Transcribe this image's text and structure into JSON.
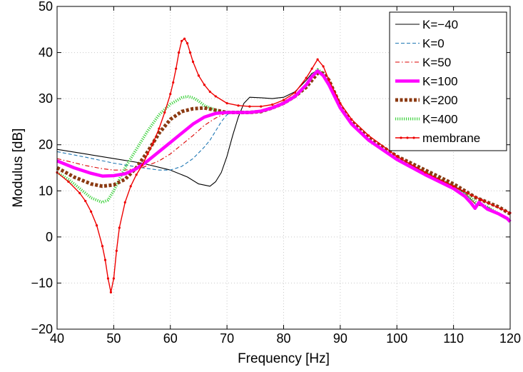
{
  "chart_data": {
    "type": "line",
    "title": "",
    "xlabel": "Frequency [Hz]",
    "ylabel": "Modulus [dB]",
    "xlim": [
      40,
      120
    ],
    "ylim": [
      -20,
      50
    ],
    "xticks": [
      40,
      50,
      60,
      70,
      80,
      90,
      100,
      110,
      120
    ],
    "yticks": [
      -20,
      -10,
      0,
      10,
      20,
      30,
      40,
      50
    ],
    "xtick_labels": [
      "40",
      "50",
      "60",
      "70",
      "80",
      "90",
      "100",
      "110",
      "120"
    ],
    "ytick_labels": [
      "−20",
      "−10",
      "0",
      "10",
      "20",
      "30",
      "40",
      "50"
    ],
    "grid": true,
    "legend_position": "top-right",
    "series": [
      {
        "name": "K=−40",
        "color": "#000000",
        "style": "solid",
        "x": [
          40,
          45,
          50,
          55,
          60,
          63,
          65,
          67,
          68,
          69,
          70,
          71,
          72,
          73,
          74,
          76,
          78,
          80,
          82,
          84,
          85,
          86,
          87,
          88,
          90,
          92,
          95,
          100,
          105,
          110,
          112,
          114,
          116,
          118,
          120
        ],
        "y": [
          19,
          18,
          17,
          16,
          14.5,
          13,
          11.5,
          11,
          12,
          14,
          17.5,
          22,
          26,
          29,
          30.3,
          30.2,
          30,
          30.3,
          31.5,
          34,
          35.5,
          36,
          35.2,
          33,
          28,
          24.5,
          21,
          17,
          14,
          11,
          9.5,
          7,
          6.5,
          5,
          3.5
        ]
      },
      {
        "name": "K=0",
        "color": "#1f77b4",
        "style": "dash",
        "x": [
          40,
          45,
          50,
          55,
          58,
          60,
          62,
          64,
          66,
          67,
          68,
          69,
          70,
          71,
          72,
          74,
          76,
          78,
          80,
          82,
          84,
          85,
          86,
          87,
          88,
          90,
          92,
          95,
          100,
          105,
          110,
          112,
          114,
          116,
          118,
          120
        ],
        "y": [
          18.5,
          17.3,
          16,
          15,
          14.5,
          14.5,
          15.3,
          17,
          19.5,
          21,
          23,
          25,
          26.5,
          27,
          27,
          27,
          27.5,
          28,
          29,
          30.5,
          33,
          35,
          36,
          35,
          33,
          28,
          24.5,
          21,
          17,
          14,
          11,
          9.5,
          7,
          6.5,
          5,
          3.5
        ]
      },
      {
        "name": "K=50",
        "color": "#dd0000",
        "style": "dashdot",
        "x": [
          40,
          45,
          48,
          50,
          52,
          55,
          58,
          60,
          62,
          64,
          66,
          68,
          70,
          72,
          74,
          76,
          78,
          80,
          82,
          84,
          85,
          86,
          87,
          88,
          90,
          92,
          95,
          100,
          105,
          110,
          112,
          114,
          116,
          118,
          120
        ],
        "y": [
          17,
          15.5,
          14.8,
          14.5,
          14.5,
          15,
          16.5,
          18,
          20,
          22,
          24.2,
          25.8,
          27,
          27,
          27,
          27.3,
          28,
          29,
          30.5,
          33,
          35,
          36,
          35,
          33,
          28,
          24.5,
          21,
          17,
          14,
          11,
          9.5,
          7,
          6.5,
          5,
          3.5
        ]
      },
      {
        "name": "K=100",
        "color": "#ff00ff",
        "style": "thick",
        "x": [
          40,
          43,
          46,
          48,
          50,
          52,
          54,
          56,
          58,
          60,
          62,
          64,
          66,
          68,
          70,
          72,
          74,
          76,
          78,
          80,
          82,
          84,
          85,
          86,
          87,
          88,
          90,
          92,
          95,
          100,
          105,
          110,
          112,
          113,
          113.8,
          114.5,
          115.5,
          116,
          118,
          119.5,
          120
        ],
        "y": [
          16.5,
          15,
          13.8,
          13.2,
          13.3,
          13.7,
          14.8,
          16.5,
          18.5,
          20.5,
          22.5,
          24.5,
          26,
          26.8,
          27,
          27,
          27,
          27.3,
          28,
          29,
          30.5,
          33,
          34.8,
          36,
          35,
          33,
          28,
          24.5,
          21,
          16.8,
          13.5,
          10.5,
          8.8,
          7.5,
          6.2,
          7.5,
          6.5,
          6,
          5,
          4,
          3.3
        ]
      },
      {
        "name": "K=200",
        "color": "#8b3a12",
        "style": "thickdot",
        "x": [
          40,
          43,
          46,
          48,
          50,
          52,
          54,
          56,
          58,
          60,
          62,
          64,
          66,
          68,
          70,
          72,
          74,
          76,
          78,
          80,
          82,
          84,
          85,
          86,
          87,
          88,
          90,
          92,
          95,
          100,
          105,
          110,
          112,
          114,
          116,
          118,
          120
        ],
        "y": [
          15,
          13,
          11.5,
          11,
          11.3,
          12.5,
          15,
          18.5,
          22.5,
          25.5,
          27.2,
          27.8,
          28,
          27.5,
          27,
          27,
          27,
          27.2,
          28,
          29,
          30.5,
          32.5,
          34,
          35.5,
          35.5,
          34,
          28.5,
          25,
          21.5,
          17.5,
          14.5,
          11.5,
          10,
          8.5,
          7.5,
          6.5,
          5
        ]
      },
      {
        "name": "K=400",
        "color": "#3fd23f",
        "style": "dot",
        "x": [
          40,
          42,
          44,
          46,
          48,
          49,
          50,
          51,
          52,
          54,
          56,
          58,
          60,
          62,
          63,
          64,
          65,
          66,
          68,
          70,
          72,
          74,
          76,
          78,
          80,
          82,
          84,
          85,
          86,
          87,
          88,
          90,
          92,
          95,
          100,
          105,
          110,
          112,
          114,
          116,
          118,
          120
        ],
        "y": [
          14,
          12.5,
          10.5,
          8.5,
          7.5,
          8,
          10,
          12.5,
          15,
          19,
          23,
          26.5,
          28.8,
          30.2,
          30.5,
          30.2,
          29.5,
          28.5,
          27.5,
          27,
          27,
          27,
          27.2,
          28,
          29,
          30.5,
          33,
          35,
          36.3,
          35.5,
          33.5,
          28,
          24.5,
          21,
          17,
          14,
          11,
          9.5,
          7.5,
          6.5,
          5,
          3.5
        ]
      },
      {
        "name": "membrane",
        "color": "#ee0000",
        "style": "marker",
        "x": [
          40,
          42,
          44,
          45,
          46,
          47,
          48,
          48.5,
          49,
          49.5,
          50,
          50.5,
          51,
          52,
          53,
          54,
          55,
          56,
          57,
          58,
          59,
          60,
          60.5,
          61,
          61.5,
          62,
          62.5,
          63,
          63.5,
          64,
          65,
          66,
          67,
          68,
          70,
          72,
          74,
          76,
          78,
          80,
          82,
          84,
          85,
          86,
          87,
          88,
          90,
          92,
          95,
          100,
          105,
          110,
          115,
          120
        ],
        "y": [
          14,
          12,
          9.5,
          7.8,
          5.5,
          2.5,
          -2,
          -5,
          -9,
          -12,
          -9,
          -3,
          2,
          7.5,
          11,
          13.5,
          15.5,
          18,
          20.5,
          23.5,
          27,
          31,
          33.5,
          36.5,
          40,
          42.5,
          43,
          42,
          40,
          38,
          35,
          33,
          31.5,
          30.5,
          29,
          28.5,
          28.3,
          28.3,
          28.7,
          29.7,
          31.3,
          34.5,
          36.5,
          38.5,
          37,
          34,
          29,
          25.5,
          22,
          17.5,
          14,
          11,
          8,
          5.2
        ]
      }
    ]
  }
}
